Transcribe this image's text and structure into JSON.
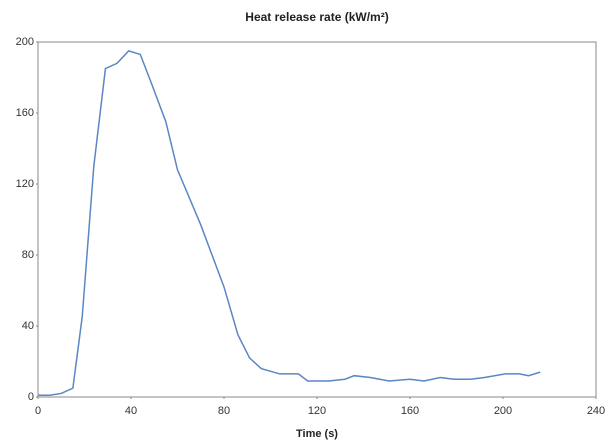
{
  "chart_data": {
    "type": "line",
    "title": "Heat release rate (kW/m²)",
    "x_label": "Time (s)",
    "x": [
      0,
      5,
      10,
      15,
      19,
      24,
      29,
      34,
      39,
      44,
      49,
      55,
      60,
      70,
      80,
      86,
      91,
      96,
      104,
      112,
      116,
      125,
      132,
      136,
      143,
      151,
      160,
      166,
      173,
      179,
      186,
      192,
      201,
      207,
      211,
      216
    ],
    "series": [
      {
        "name": "Heat release rate",
        "color": "#5a86c5",
        "values": [
          1,
          1,
          2,
          5,
          45,
          130,
          185,
          188,
          195,
          193,
          176,
          155,
          128,
          97,
          62,
          35,
          22,
          16,
          13,
          13,
          9,
          9,
          10,
          12,
          11,
          9,
          10,
          9,
          11,
          10,
          10,
          11,
          13,
          13,
          12,
          14
        ]
      }
    ],
    "xlim": [
      0,
      240
    ],
    "xticks": [
      0,
      40,
      80,
      120,
      160,
      200,
      240
    ],
    "ylim": [
      0,
      200
    ],
    "yticks": [
      0,
      40,
      80,
      120,
      160,
      200
    ]
  }
}
